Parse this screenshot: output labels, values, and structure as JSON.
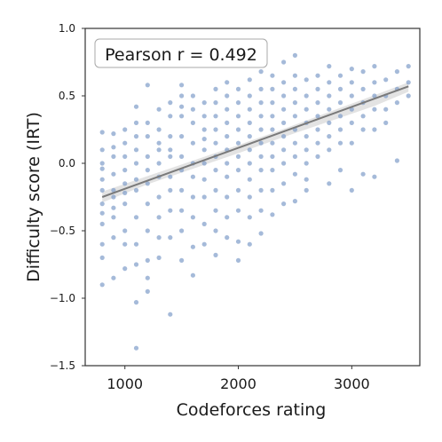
{
  "chart_data": {
    "type": "scatter",
    "title": "",
    "xlabel": "Codeforces rating",
    "ylabel": "Difficulty score (IRT)",
    "xlim": [
      650,
      3600
    ],
    "ylim": [
      -1.5,
      1.0
    ],
    "xticks": [
      1000,
      2000,
      3000
    ],
    "yticks": [
      -1.5,
      -1.0,
      -0.5,
      0.0,
      0.5,
      1.0
    ],
    "xtick_labels": [
      "1000",
      "2000",
      "3000"
    ],
    "ytick_labels": [
      "−1.5",
      "−1.0",
      "−0.5",
      "0.0",
      "0.5",
      "1.0"
    ],
    "grid": false,
    "annotation": "Pearson r = 0.492",
    "annotation_position": "top-left",
    "point_color": "#7f9cc9",
    "fit_line_color": "#7a7a7a",
    "ci_band_color": "#d9d9d9",
    "fit_line": {
      "x": [
        800,
        3500
      ],
      "y": [
        -0.25,
        0.57
      ]
    },
    "ci_band": {
      "x": [
        800,
        1200,
        1600,
        2000,
        2400,
        2800,
        3200,
        3500
      ],
      "upper": [
        -0.21,
        -0.095,
        0.02,
        0.135,
        0.255,
        0.38,
        0.505,
        0.6
      ],
      "lower": [
        -0.29,
        -0.155,
        -0.04,
        0.075,
        0.195,
        0.31,
        0.425,
        0.53
      ]
    },
    "points": [
      [
        800,
        0.23
      ],
      [
        800,
        0.1
      ],
      [
        800,
        -0.04
      ],
      [
        800,
        -0.2
      ],
      [
        800,
        -0.3
      ],
      [
        800,
        -0.45
      ],
      [
        800,
        -0.6
      ],
      [
        800,
        -0.7
      ],
      [
        800,
        -0.9
      ],
      [
        800,
        0.0
      ],
      [
        800,
        -0.12
      ],
      [
        800,
        -0.37
      ],
      [
        900,
        0.22
      ],
      [
        900,
        0.05
      ],
      [
        900,
        -0.08
      ],
      [
        900,
        -0.25
      ],
      [
        900,
        -0.4
      ],
      [
        900,
        -0.55
      ],
      [
        900,
        -0.85
      ],
      [
        900,
        0.12
      ],
      [
        900,
        -0.33
      ],
      [
        900,
        -0.2
      ],
      [
        1000,
        0.25
      ],
      [
        1000,
        0.15
      ],
      [
        1000,
        -0.05
      ],
      [
        1000,
        -0.15
      ],
      [
        1000,
        -0.3
      ],
      [
        1000,
        -0.5
      ],
      [
        1000,
        -0.6
      ],
      [
        1000,
        -0.78
      ],
      [
        1000,
        0.05
      ],
      [
        1000,
        -0.22
      ],
      [
        1100,
        0.42
      ],
      [
        1100,
        0.3
      ],
      [
        1100,
        0.1
      ],
      [
        1100,
        0.0
      ],
      [
        1100,
        -0.12
      ],
      [
        1100,
        -0.2
      ],
      [
        1100,
        -0.4
      ],
      [
        1100,
        -0.6
      ],
      [
        1100,
        -0.75
      ],
      [
        1100,
        -1.03
      ],
      [
        1100,
        -1.37
      ],
      [
        1100,
        0.2
      ],
      [
        1200,
        0.58
      ],
      [
        1200,
        0.3
      ],
      [
        1200,
        0.2
      ],
      [
        1200,
        0.05
      ],
      [
        1200,
        -0.05
      ],
      [
        1200,
        -0.15
      ],
      [
        1200,
        -0.3
      ],
      [
        1200,
        -0.5
      ],
      [
        1200,
        -0.72
      ],
      [
        1200,
        -0.85
      ],
      [
        1200,
        -0.95
      ],
      [
        1300,
        0.4
      ],
      [
        1300,
        0.25
      ],
      [
        1300,
        0.1
      ],
      [
        1300,
        0.0
      ],
      [
        1300,
        -0.1
      ],
      [
        1300,
        -0.25
      ],
      [
        1300,
        -0.4
      ],
      [
        1300,
        -0.55
      ],
      [
        1300,
        -0.7
      ],
      [
        1300,
        0.15
      ],
      [
        1400,
        0.45
      ],
      [
        1400,
        0.35
      ],
      [
        1400,
        0.2
      ],
      [
        1400,
        0.05
      ],
      [
        1400,
        -0.1
      ],
      [
        1400,
        -0.2
      ],
      [
        1400,
        -0.35
      ],
      [
        1400,
        -0.55
      ],
      [
        1400,
        -1.12
      ],
      [
        1400,
        0.1
      ],
      [
        1500,
        0.58
      ],
      [
        1500,
        0.5
      ],
      [
        1500,
        0.35
      ],
      [
        1500,
        0.2
      ],
      [
        1500,
        0.05
      ],
      [
        1500,
        -0.05
      ],
      [
        1500,
        -0.2
      ],
      [
        1500,
        -0.35
      ],
      [
        1500,
        -0.5
      ],
      [
        1500,
        -0.72
      ],
      [
        1500,
        0.42
      ],
      [
        1600,
        0.5
      ],
      [
        1600,
        0.4
      ],
      [
        1600,
        0.3
      ],
      [
        1600,
        0.15
      ],
      [
        1600,
        0.0
      ],
      [
        1600,
        -0.1
      ],
      [
        1600,
        -0.25
      ],
      [
        1600,
        -0.4
      ],
      [
        1600,
        -0.62
      ],
      [
        1600,
        -0.83
      ],
      [
        1700,
        0.45
      ],
      [
        1700,
        0.35
      ],
      [
        1700,
        0.25
      ],
      [
        1700,
        0.1
      ],
      [
        1700,
        0.0
      ],
      [
        1700,
        -0.12
      ],
      [
        1700,
        -0.25
      ],
      [
        1700,
        -0.45
      ],
      [
        1700,
        -0.6
      ],
      [
        1700,
        0.18
      ],
      [
        1800,
        0.55
      ],
      [
        1800,
        0.45
      ],
      [
        1800,
        0.35
      ],
      [
        1800,
        0.25
      ],
      [
        1800,
        0.15
      ],
      [
        1800,
        0.05
      ],
      [
        1800,
        -0.05
      ],
      [
        1800,
        -0.2
      ],
      [
        1800,
        -0.35
      ],
      [
        1800,
        -0.5
      ],
      [
        1800,
        -0.68
      ],
      [
        1900,
        0.6
      ],
      [
        1900,
        0.5
      ],
      [
        1900,
        0.4
      ],
      [
        1900,
        0.3
      ],
      [
        1900,
        0.2
      ],
      [
        1900,
        0.1
      ],
      [
        1900,
        0.0
      ],
      [
        1900,
        -0.1
      ],
      [
        1900,
        -0.25
      ],
      [
        1900,
        -0.4
      ],
      [
        1900,
        -0.55
      ],
      [
        2000,
        0.55
      ],
      [
        2000,
        0.45
      ],
      [
        2000,
        0.35
      ],
      [
        2000,
        0.25
      ],
      [
        2000,
        0.15
      ],
      [
        2000,
        0.05
      ],
      [
        2000,
        -0.05
      ],
      [
        2000,
        -0.2
      ],
      [
        2000,
        -0.35
      ],
      [
        2000,
        -0.58
      ],
      [
        2000,
        -0.72
      ],
      [
        2100,
        0.62
      ],
      [
        2100,
        0.5
      ],
      [
        2100,
        0.4
      ],
      [
        2100,
        0.3
      ],
      [
        2100,
        0.2
      ],
      [
        2100,
        0.1
      ],
      [
        2100,
        0.0
      ],
      [
        2100,
        -0.12
      ],
      [
        2100,
        -0.25
      ],
      [
        2100,
        -0.4
      ],
      [
        2100,
        -0.6
      ],
      [
        2200,
        0.68
      ],
      [
        2200,
        0.55
      ],
      [
        2200,
        0.45
      ],
      [
        2200,
        0.35
      ],
      [
        2200,
        0.25
      ],
      [
        2200,
        0.15
      ],
      [
        2200,
        0.05
      ],
      [
        2200,
        -0.05
      ],
      [
        2200,
        -0.2
      ],
      [
        2200,
        -0.35
      ],
      [
        2200,
        -0.52
      ],
      [
        2300,
        0.65
      ],
      [
        2300,
        0.55
      ],
      [
        2300,
        0.45
      ],
      [
        2300,
        0.35
      ],
      [
        2300,
        0.25
      ],
      [
        2300,
        0.15
      ],
      [
        2300,
        0.05
      ],
      [
        2300,
        -0.05
      ],
      [
        2300,
        -0.2
      ],
      [
        2300,
        -0.38
      ],
      [
        2400,
        0.75
      ],
      [
        2400,
        0.6
      ],
      [
        2400,
        0.5
      ],
      [
        2400,
        0.4
      ],
      [
        2400,
        0.3
      ],
      [
        2400,
        0.2
      ],
      [
        2400,
        0.1
      ],
      [
        2400,
        0.0
      ],
      [
        2400,
        -0.15
      ],
      [
        2400,
        -0.3
      ],
      [
        2500,
        0.8
      ],
      [
        2500,
        0.65
      ],
      [
        2500,
        0.55
      ],
      [
        2500,
        0.45
      ],
      [
        2500,
        0.35
      ],
      [
        2500,
        0.25
      ],
      [
        2500,
        0.15
      ],
      [
        2500,
        0.05
      ],
      [
        2500,
        -0.08
      ],
      [
        2500,
        -0.28
      ],
      [
        2600,
        0.62
      ],
      [
        2600,
        0.5
      ],
      [
        2600,
        0.4
      ],
      [
        2600,
        0.3
      ],
      [
        2600,
        0.2
      ],
      [
        2600,
        0.1
      ],
      [
        2600,
        0.0
      ],
      [
        2600,
        -0.12
      ],
      [
        2600,
        -0.2
      ],
      [
        2700,
        0.65
      ],
      [
        2700,
        0.55
      ],
      [
        2700,
        0.45
      ],
      [
        2700,
        0.35
      ],
      [
        2700,
        0.25
      ],
      [
        2700,
        0.15
      ],
      [
        2700,
        0.05
      ],
      [
        2800,
        0.72
      ],
      [
        2800,
        0.6
      ],
      [
        2800,
        0.5
      ],
      [
        2800,
        0.4
      ],
      [
        2800,
        0.3
      ],
      [
        2800,
        0.2
      ],
      [
        2800,
        0.1
      ],
      [
        2800,
        -0.15
      ],
      [
        2900,
        0.65
      ],
      [
        2900,
        0.55
      ],
      [
        2900,
        0.45
      ],
      [
        2900,
        0.35
      ],
      [
        2900,
        0.25
      ],
      [
        2900,
        0.15
      ],
      [
        2900,
        -0.05
      ],
      [
        3000,
        0.7
      ],
      [
        3000,
        0.6
      ],
      [
        3000,
        0.5
      ],
      [
        3000,
        0.4
      ],
      [
        3000,
        0.3
      ],
      [
        3000,
        0.15
      ],
      [
        3000,
        -0.2
      ],
      [
        3100,
        0.68
      ],
      [
        3100,
        0.55
      ],
      [
        3100,
        0.45
      ],
      [
        3100,
        0.35
      ],
      [
        3100,
        0.25
      ],
      [
        3100,
        -0.08
      ],
      [
        3200,
        0.72
      ],
      [
        3200,
        0.6
      ],
      [
        3200,
        0.5
      ],
      [
        3200,
        0.4
      ],
      [
        3200,
        0.25
      ],
      [
        3200,
        -0.1
      ],
      [
        3300,
        0.62
      ],
      [
        3300,
        0.5
      ],
      [
        3300,
        0.4
      ],
      [
        3300,
        0.3
      ],
      [
        3400,
        0.68
      ],
      [
        3400,
        0.55
      ],
      [
        3400,
        0.45
      ],
      [
        3400,
        0.02
      ],
      [
        3500,
        0.72
      ],
      [
        3500,
        0.6
      ],
      [
        3500,
        0.5
      ]
    ]
  }
}
